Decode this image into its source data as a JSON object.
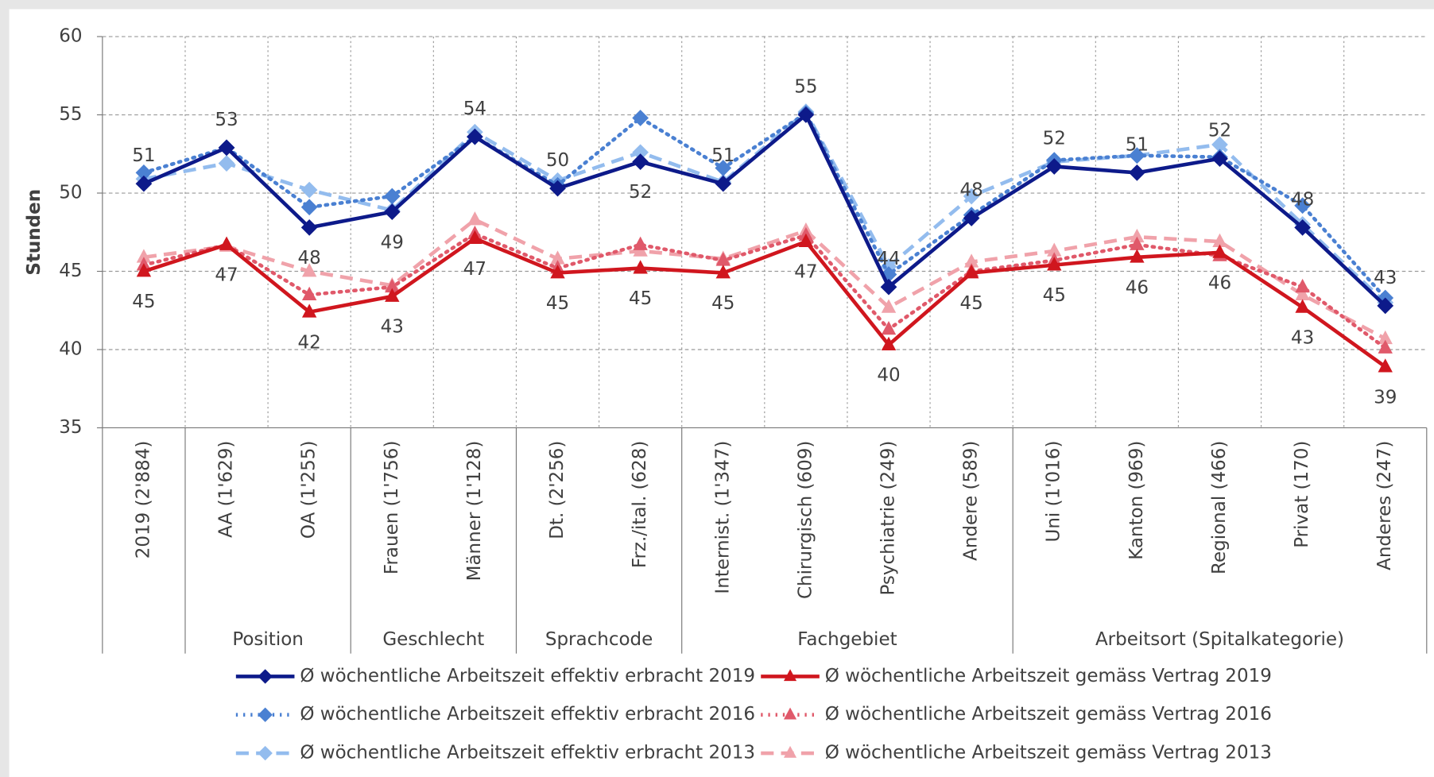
{
  "chart_data": {
    "type": "line",
    "y_label": "Stunden",
    "categories": [
      "2019 (2'884)",
      "AA (1'629)",
      "OA (1'255)",
      "Frauen (1'756)",
      "Männer (1'128)",
      "Dt. (2'256)",
      "Frz./ital. (628)",
      "Internist. (1'347)",
      "Chirurgisch (609)",
      "Psychiatrie (249)",
      "Andere (589)",
      "Uni (1'016)",
      "Kanton (969)",
      "Regional (466)",
      "Privat (170)",
      "Anderes (247)"
    ],
    "category_groups": [
      {
        "label": null,
        "count": 1
      },
      {
        "label": "Position",
        "count": 2
      },
      {
        "label": "Geschlecht",
        "count": 2
      },
      {
        "label": "Sprachcode",
        "count": 2
      },
      {
        "label": "Fachgebiet",
        "count": 4
      },
      {
        "label": "Arbeitsort (Spitalkategorie)",
        "count": 5
      }
    ],
    "ylim": [
      35,
      60
    ],
    "yticks": [
      35,
      40,
      45,
      50,
      55,
      60
    ],
    "grid": true,
    "series": [
      {
        "name": "Ø wöchentliche Arbeitszeit effektiv erbracht 2019",
        "color": "#0d1a8a",
        "line_style": "solid",
        "marker": "diamond",
        "values": [
          50.6,
          52.9,
          47.8,
          48.8,
          53.6,
          50.3,
          52.0,
          50.6,
          55.0,
          44.0,
          48.4,
          51.7,
          51.3,
          52.2,
          47.8,
          42.8
        ],
        "value_labels": [
          "51",
          "53",
          "48",
          "49",
          "54",
          "50",
          "52",
          "51",
          "55",
          "44",
          "48",
          "52",
          "51",
          "52",
          "48",
          "43"
        ]
      },
      {
        "name": "Ø wöchentliche Arbeitszeit gemäss Vertrag 2019",
        "color": "#d0161e",
        "line_style": "solid",
        "marker": "triangle",
        "values": [
          45.0,
          46.7,
          42.4,
          43.4,
          47.1,
          44.9,
          45.2,
          44.9,
          46.9,
          40.3,
          44.9,
          45.4,
          45.9,
          46.2,
          42.7,
          38.9
        ],
        "value_labels": [
          "45",
          "47",
          "42",
          "43",
          "47",
          "45",
          "45",
          "45",
          "47",
          "40",
          "45",
          "45",
          "46",
          "46",
          "43",
          "39"
        ]
      },
      {
        "name": "Ø wöchentliche Arbeitszeit effektiv erbracht 2016",
        "color": "#4a80d2",
        "line_style": "dotted",
        "marker": "diamond",
        "values": [
          51.3,
          52.9,
          49.1,
          49.8,
          53.6,
          50.5,
          54.8,
          51.6,
          55.1,
          44.8,
          48.6,
          52.1,
          52.4,
          52.3,
          49.2,
          43.3
        ]
      },
      {
        "name": "Ø wöchentliche Arbeitszeit gemäss Vertrag 2016",
        "color": "#e0596a",
        "line_style": "dotted",
        "marker": "triangle",
        "values": [
          45.4,
          46.7,
          43.5,
          44.0,
          47.4,
          45.2,
          46.7,
          45.7,
          47.3,
          41.3,
          45.0,
          45.7,
          46.7,
          46.0,
          44.0,
          40.1
        ]
      },
      {
        "name": "Ø wöchentliche Arbeitszeit effektiv erbracht 2013",
        "color": "#93bcee",
        "line_style": "dashed",
        "marker": "diamond",
        "values": [
          50.9,
          51.9,
          50.2,
          48.9,
          53.9,
          50.8,
          52.6,
          50.7,
          55.2,
          45.3,
          49.8,
          52.0,
          52.4,
          53.1,
          48.0,
          43.0
        ]
      },
      {
        "name": "Ø wöchentliche Arbeitszeit gemäss Vertrag 2013",
        "color": "#f0a2aa",
        "line_style": "dashed",
        "marker": "triangle",
        "values": [
          45.9,
          46.6,
          45.0,
          44.1,
          48.3,
          45.8,
          46.3,
          45.8,
          47.6,
          42.7,
          45.6,
          46.3,
          47.2,
          46.9,
          43.5,
          40.7
        ]
      }
    ]
  }
}
